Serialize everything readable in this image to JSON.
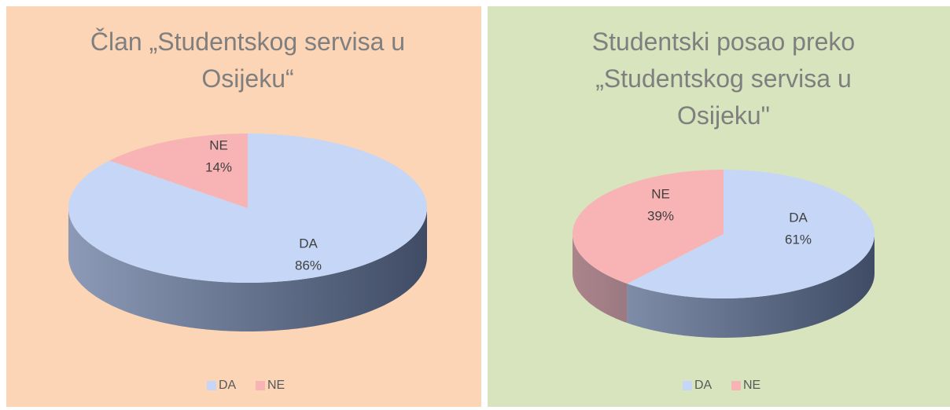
{
  "chart_data": [
    {
      "type": "pie",
      "title": "Član „Studentskog servisa u Osijeku“",
      "categories": [
        "DA",
        "NE"
      ],
      "values": [
        86,
        14
      ],
      "value_labels": [
        "86%",
        "14%"
      ],
      "colors": [
        "#c6d6f7",
        "#f8b4b4"
      ],
      "background": "#fbd5b5",
      "legend": "bottom"
    },
    {
      "type": "pie",
      "title": "Studentski posao preko „Studentskog servisa u Osijeku\"",
      "categories": [
        "DA",
        "NE"
      ],
      "values": [
        61,
        39
      ],
      "value_labels": [
        "61%",
        "39%"
      ],
      "colors": [
        "#c6d6f7",
        "#f8b4b4"
      ],
      "background": "#d7e4bd",
      "legend": "bottom"
    }
  ]
}
